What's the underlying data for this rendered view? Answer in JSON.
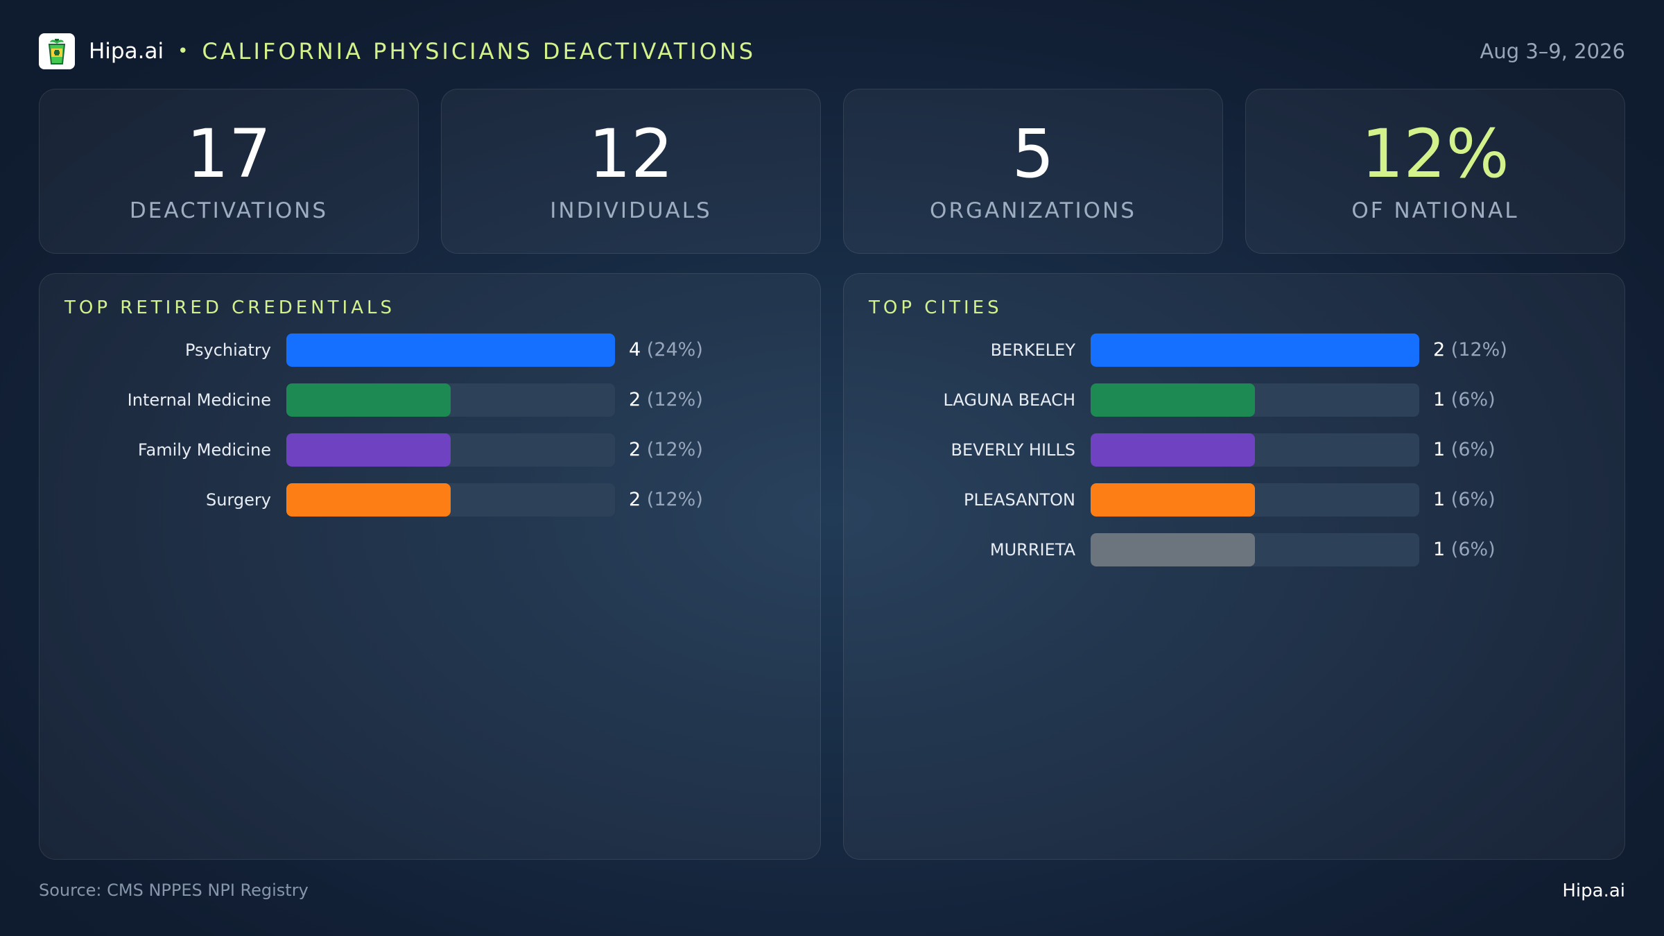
{
  "header": {
    "brand": "Hipa.ai",
    "separator": "•",
    "title": "CALIFORNIA PHYSICIANS DEACTIVATIONS",
    "date": "Aug 3–9, 2026",
    "logo_icon": "green-cup-icon"
  },
  "stats": [
    {
      "value": "17",
      "label": "DEACTIVATIONS"
    },
    {
      "value": "12",
      "label": "INDIVIDUALS"
    },
    {
      "value": "5",
      "label": "ORGANIZATIONS"
    },
    {
      "value": "12%",
      "label": "OF NATIONAL"
    }
  ],
  "colors": {
    "accent": "#d4f28c",
    "blue": "#1570ff",
    "green": "#1d8a53",
    "purple": "#6f42c1",
    "orange": "#fd7e14",
    "gray": "#6c757d",
    "track": "#2d4158"
  },
  "chart_data": [
    {
      "type": "bar",
      "orientation": "horizontal",
      "title": "TOP RETIRED CREDENTIALS",
      "categories": [
        "Psychiatry",
        "Internal Medicine",
        "Family Medicine",
        "Surgery"
      ],
      "values": [
        4,
        2,
        2,
        2
      ],
      "labels": [
        "(24%)",
        "(12%)",
        "(12%)",
        "(12%)"
      ],
      "colors": [
        "#1570ff",
        "#1d8a53",
        "#6f42c1",
        "#fd7e14"
      ],
      "xlim": [
        0,
        4
      ]
    },
    {
      "type": "bar",
      "orientation": "horizontal",
      "title": "TOP CITIES",
      "categories": [
        "BERKELEY",
        "LAGUNA BEACH",
        "BEVERLY HILLS",
        "PLEASANTON",
        "MURRIETA"
      ],
      "values": [
        2,
        1,
        1,
        1,
        1
      ],
      "labels": [
        "(12%)",
        "(6%)",
        "(6%)",
        "(6%)",
        "(6%)"
      ],
      "colors": [
        "#1570ff",
        "#1d8a53",
        "#6f42c1",
        "#fd7e14",
        "#6c757d"
      ],
      "xlim": [
        0,
        2
      ]
    }
  ],
  "footer": {
    "source": "Source: CMS NPPES NPI Registry",
    "brand": "Hipa.ai"
  }
}
